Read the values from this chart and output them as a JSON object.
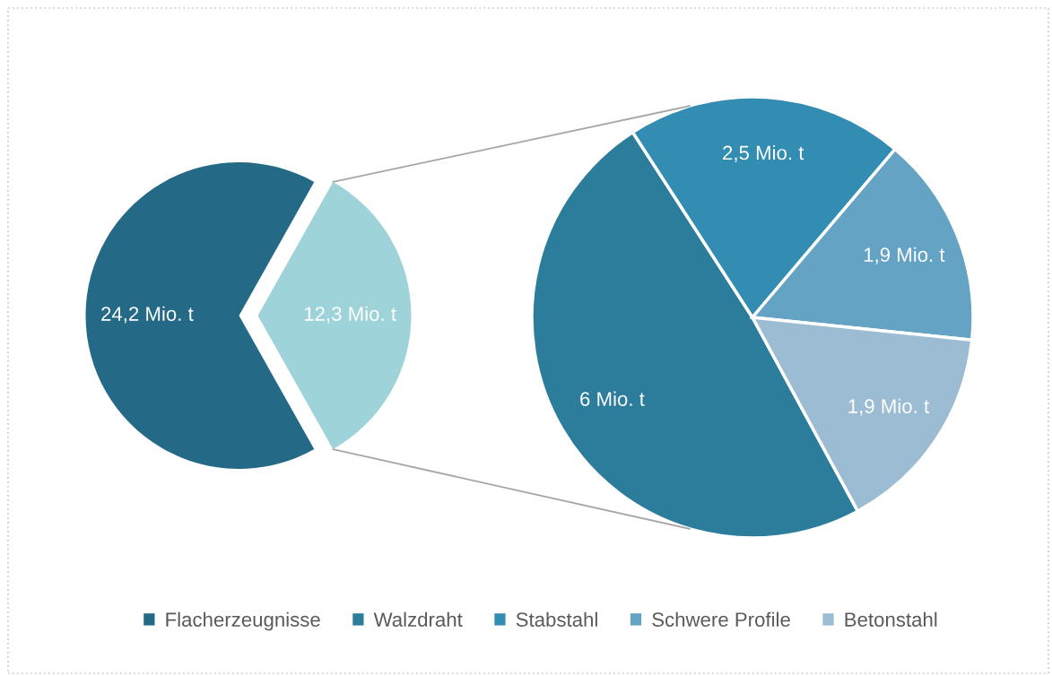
{
  "chart_data": [
    {
      "type": "pie",
      "categories": [
        "Flacherzeugnisse",
        null
      ],
      "values": [
        24.2,
        12.3
      ],
      "colors": [
        "#246a87",
        "#9dd3d9"
      ],
      "value_labels": [
        "24,2 Mio. t",
        "12,3 Mio. t"
      ],
      "legend": "bottom"
    },
    {
      "type": "pie",
      "categories": [
        "Walzdraht",
        "Stabstahl",
        "Schwere Profile",
        "Betonstahl"
      ],
      "values": [
        6,
        2.5,
        1.9,
        1.9
      ],
      "colors": [
        "#2c7d9c",
        "#338cb2",
        "#64a3c4",
        "#9bbcd3"
      ],
      "value_labels": [
        "6 Mio. t",
        "2,5 Mio. t",
        "1,9 Mio. t",
        "1,9 Mio. t"
      ],
      "legend": "bottom"
    }
  ]
}
